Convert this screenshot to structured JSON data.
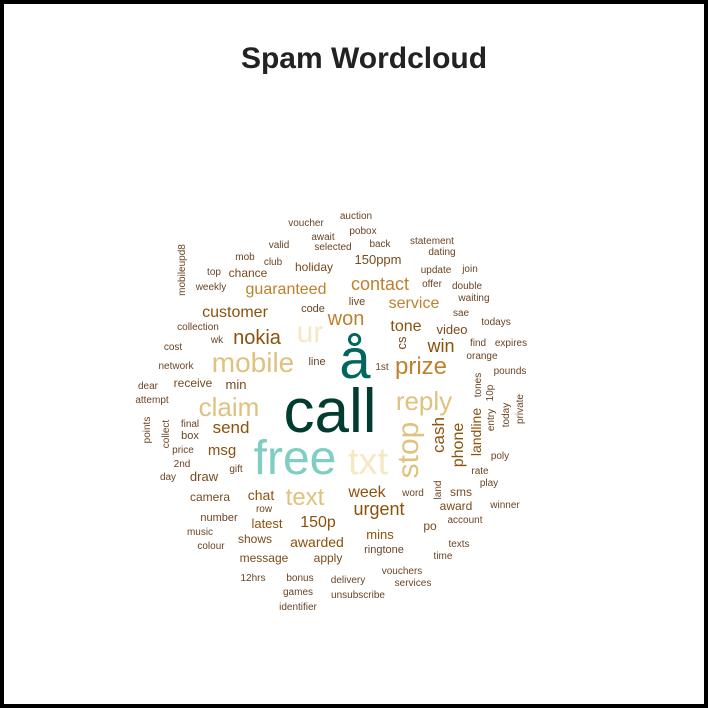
{
  "chart_data": {
    "type": "wordcloud",
    "title": "Spam Wordcloud",
    "words": [
      {
        "text": "call",
        "color": "#003c30"
      },
      {
        "text": "å",
        "color": "#01665e"
      },
      {
        "text": "free",
        "color": "#80cdc1"
      },
      {
        "text": "txt",
        "color": "#f6e8c3"
      },
      {
        "text": "ur",
        "color": "#f6e8c3"
      },
      {
        "text": "mobile",
        "color": "#dfc27d"
      },
      {
        "text": "claim",
        "color": "#dfc27d"
      },
      {
        "text": "reply",
        "color": "#dfc27d"
      },
      {
        "text": "stop",
        "color": "#dfc27d"
      },
      {
        "text": "prize",
        "color": "#bf812d"
      },
      {
        "text": "text",
        "color": "#dfc27d"
      },
      {
        "text": "won",
        "color": "#bf812d"
      },
      {
        "text": "contact",
        "color": "#bf812d"
      },
      {
        "text": "nokia",
        "color": "#8c510a"
      },
      {
        "text": "service",
        "color": "#bf812d"
      },
      {
        "text": "guaranteed",
        "color": "#bf812d"
      },
      {
        "text": "tone",
        "color": "#8c510a"
      },
      {
        "text": "win",
        "color": "#8c510a"
      },
      {
        "text": "customer",
        "color": "#8c510a"
      },
      {
        "text": "cash",
        "color": "#8c510a"
      },
      {
        "text": "phone",
        "color": "#8c510a"
      },
      {
        "text": "landline",
        "color": "#8c510a"
      },
      {
        "text": "send",
        "color": "#8c510a"
      },
      {
        "text": "urgent",
        "color": "#8c510a"
      },
      {
        "text": "week",
        "color": "#8c510a"
      },
      {
        "text": "150p",
        "color": "#8c510a"
      },
      {
        "text": "msg",
        "color": "#8c510a"
      },
      {
        "text": "chat",
        "color": "#8c510a"
      },
      {
        "text": "latest",
        "color": "#8c510a"
      },
      {
        "text": "awarded",
        "color": "#8c510a"
      },
      {
        "text": "mins",
        "color": "#8c510a"
      },
      {
        "text": "video",
        "color": "#7a4a1c"
      },
      {
        "text": "cs",
        "color": "#7a4a1c"
      },
      {
        "text": "150ppm",
        "color": "#7a4a1c"
      },
      {
        "text": "holiday",
        "color": "#7a4a1c"
      },
      {
        "text": "chance",
        "color": "#7a4a1c"
      },
      {
        "text": "code",
        "color": "#6b4424"
      },
      {
        "text": "live",
        "color": "#6b4424"
      },
      {
        "text": "line",
        "color": "#6b4424"
      },
      {
        "text": "1st",
        "color": "#6b4424"
      },
      {
        "text": "min",
        "color": "#7a4a1c"
      },
      {
        "text": "receive",
        "color": "#7a4a1c"
      },
      {
        "text": "camera",
        "color": "#7a4a1c"
      },
      {
        "text": "draw",
        "color": "#7a4a1c"
      },
      {
        "text": "box",
        "color": "#6b4424"
      },
      {
        "text": "gift",
        "color": "#6b4424"
      },
      {
        "text": "number",
        "color": "#6b4424"
      },
      {
        "text": "shows",
        "color": "#7a4a1c"
      },
      {
        "text": "message",
        "color": "#7a4a1c"
      },
      {
        "text": "apply",
        "color": "#7a4a1c"
      },
      {
        "text": "ringtone",
        "color": "#6b4424"
      },
      {
        "text": "po",
        "color": "#7a4a1c"
      },
      {
        "text": "award",
        "color": "#7a4a1c"
      },
      {
        "text": "sms",
        "color": "#7a4a1c"
      },
      {
        "text": "account",
        "color": "#6b4424"
      },
      {
        "text": "word",
        "color": "#6b4424"
      },
      {
        "text": "land",
        "color": "#6b4424"
      },
      {
        "text": "play",
        "color": "#6b4424"
      },
      {
        "text": "winner",
        "color": "#6b4424"
      },
      {
        "text": "rate",
        "color": "#6b4424"
      },
      {
        "text": "poly",
        "color": "#6b4424"
      },
      {
        "text": "entry",
        "color": "#6b4424"
      },
      {
        "text": "10p",
        "color": "#6b4424"
      },
      {
        "text": "tones",
        "color": "#6b4424"
      },
      {
        "text": "today",
        "color": "#6b4424"
      },
      {
        "text": "private",
        "color": "#6b4424"
      },
      {
        "text": "pounds",
        "color": "#6b4424"
      },
      {
        "text": "orange",
        "color": "#6b4424"
      },
      {
        "text": "find",
        "color": "#6b4424"
      },
      {
        "text": "expires",
        "color": "#6b4424"
      },
      {
        "text": "todays",
        "color": "#6b4424"
      },
      {
        "text": "sae",
        "color": "#6b4424"
      },
      {
        "text": "waiting",
        "color": "#6b4424"
      },
      {
        "text": "double",
        "color": "#6b4424"
      },
      {
        "text": "offer",
        "color": "#6b4424"
      },
      {
        "text": "update",
        "color": "#6b4424"
      },
      {
        "text": "join",
        "color": "#6b4424"
      },
      {
        "text": "dating",
        "color": "#6b4424"
      },
      {
        "text": "statement",
        "color": "#6b4424"
      },
      {
        "text": "auction",
        "color": "#6b4424"
      },
      {
        "text": "pobox",
        "color": "#6b4424"
      },
      {
        "text": "voucher",
        "color": "#6b4424"
      },
      {
        "text": "await",
        "color": "#6b4424"
      },
      {
        "text": "selected",
        "color": "#6b4424"
      },
      {
        "text": "back",
        "color": "#6b4424"
      },
      {
        "text": "valid",
        "color": "#6b4424"
      },
      {
        "text": "mob",
        "color": "#6b4424"
      },
      {
        "text": "club",
        "color": "#6b4424"
      },
      {
        "text": "top",
        "color": "#6b4424"
      },
      {
        "text": "weekly",
        "color": "#6b4424"
      },
      {
        "text": "mobileupd8",
        "color": "#6b4424"
      },
      {
        "text": "collection",
        "color": "#6b4424"
      },
      {
        "text": "wk",
        "color": "#6b4424"
      },
      {
        "text": "cost",
        "color": "#6b4424"
      },
      {
        "text": "network",
        "color": "#6b4424"
      },
      {
        "text": "dear",
        "color": "#6b4424"
      },
      {
        "text": "attempt",
        "color": "#6b4424"
      },
      {
        "text": "points",
        "color": "#6b4424"
      },
      {
        "text": "collect",
        "color": "#6b4424"
      },
      {
        "text": "final",
        "color": "#6b4424"
      },
      {
        "text": "price",
        "color": "#6b4424"
      },
      {
        "text": "2nd",
        "color": "#6b4424"
      },
      {
        "text": "day",
        "color": "#6b4424"
      },
      {
        "text": "music",
        "color": "#6b4424"
      },
      {
        "text": "colour",
        "color": "#6b4424"
      },
      {
        "text": "12hrs",
        "color": "#6b4424"
      },
      {
        "text": "bonus",
        "color": "#6b4424"
      },
      {
        "text": "delivery",
        "color": "#6b4424"
      },
      {
        "text": "vouchers",
        "color": "#6b4424"
      },
      {
        "text": "services",
        "color": "#6b4424"
      },
      {
        "text": "texts",
        "color": "#6b4424"
      },
      {
        "text": "time",
        "color": "#6b4424"
      },
      {
        "text": "unsubscribe",
        "color": "#6b4424"
      },
      {
        "text": "games",
        "color": "#6b4424"
      },
      {
        "text": "identifier",
        "color": "#6b4424"
      },
      {
        "text": "row",
        "color": "#6b4424"
      }
    ]
  }
}
